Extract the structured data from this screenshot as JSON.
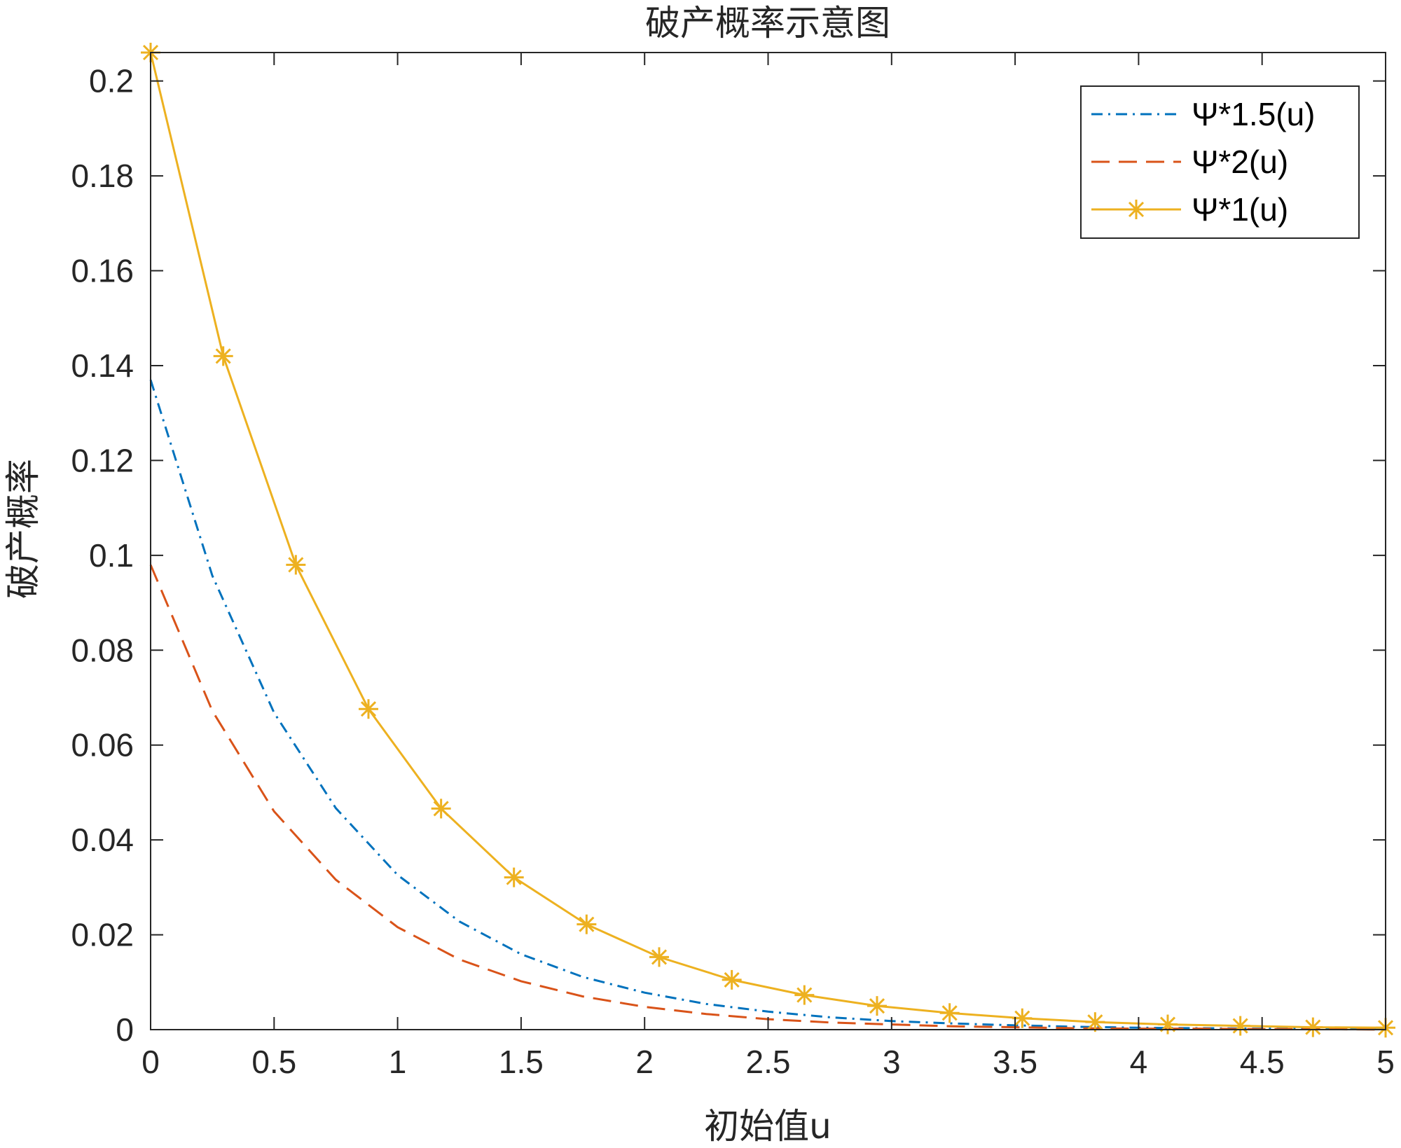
{
  "chart_data": {
    "type": "line",
    "title": "破产概率示意图",
    "xlabel": "初始值u",
    "ylabel": "破产概率",
    "xlim": [
      0,
      5
    ],
    "ylim": [
      0,
      0.206
    ],
    "xticks": [
      0,
      0.5,
      1,
      1.5,
      2,
      2.5,
      3,
      3.5,
      4,
      4.5,
      5
    ],
    "xtick_labels": [
      "0",
      "0.5",
      "1",
      "1.5",
      "2",
      "2.5",
      "3",
      "3.5",
      "4",
      "4.5",
      "5"
    ],
    "yticks": [
      0,
      0.02,
      0.04,
      0.06,
      0.08,
      0.1,
      0.12,
      0.14,
      0.16,
      0.18,
      0.2
    ],
    "ytick_labels": [
      "0",
      "0.02",
      "0.04",
      "0.06",
      "0.08",
      "0.1",
      "0.12",
      "0.14",
      "0.16",
      "0.18",
      "0.2"
    ],
    "grid": false,
    "legend_position": "top-right",
    "series": [
      {
        "name": "Ψ*1.5(u)",
        "color": "#0072BD",
        "dash": "dashdot",
        "marker": "none",
        "x": [
          0,
          0.25,
          0.5,
          0.75,
          1,
          1.25,
          1.5,
          1.75,
          2,
          2.25,
          2.5,
          2.75,
          3,
          3.25,
          3.5,
          3.75,
          4,
          4.25,
          4.5,
          4.75,
          5
        ],
        "y": [
          0.137,
          0.0957,
          0.0668,
          0.0467,
          0.0326,
          0.0228,
          0.0159,
          0.0111,
          0.0078,
          0.0054,
          0.0038,
          0.0026,
          0.0018,
          0.0013,
          0.0009,
          0.0006,
          0.0004,
          0.0003,
          0.0002,
          0.0001,
          0.0001
        ]
      },
      {
        "name": "Ψ*2(u)",
        "color": "#D95319",
        "dash": "dashed",
        "marker": "none",
        "x": [
          0,
          0.25,
          0.5,
          0.75,
          1,
          1.25,
          1.5,
          1.75,
          2,
          2.25,
          2.5,
          2.75,
          3,
          3.25,
          3.5,
          3.75,
          4,
          4.25,
          4.5,
          4.75,
          5
        ],
        "y": [
          0.098,
          0.0672,
          0.046,
          0.0316,
          0.0216,
          0.0148,
          0.0102,
          0.007,
          0.0048,
          0.0033,
          0.0022,
          0.0015,
          0.0011,
          0.0007,
          0.0005,
          0.0003,
          0.0002,
          0.0002,
          0.0001,
          0.0001,
          0.0
        ]
      },
      {
        "name": "Ψ*1(u)",
        "color": "#EDB120",
        "dash": "solid",
        "marker": "asterisk",
        "x": [
          0,
          0.294,
          0.588,
          0.882,
          1.176,
          1.471,
          1.765,
          2.059,
          2.353,
          2.647,
          2.941,
          3.235,
          3.529,
          3.824,
          4.118,
          4.412,
          4.706,
          5.0
        ],
        "y": [
          0.206,
          0.142,
          0.098,
          0.0676,
          0.0466,
          0.0321,
          0.0222,
          0.0153,
          0.0105,
          0.0073,
          0.005,
          0.0035,
          0.0024,
          0.0016,
          0.0011,
          0.0008,
          0.0005,
          0.0004
        ]
      }
    ]
  }
}
